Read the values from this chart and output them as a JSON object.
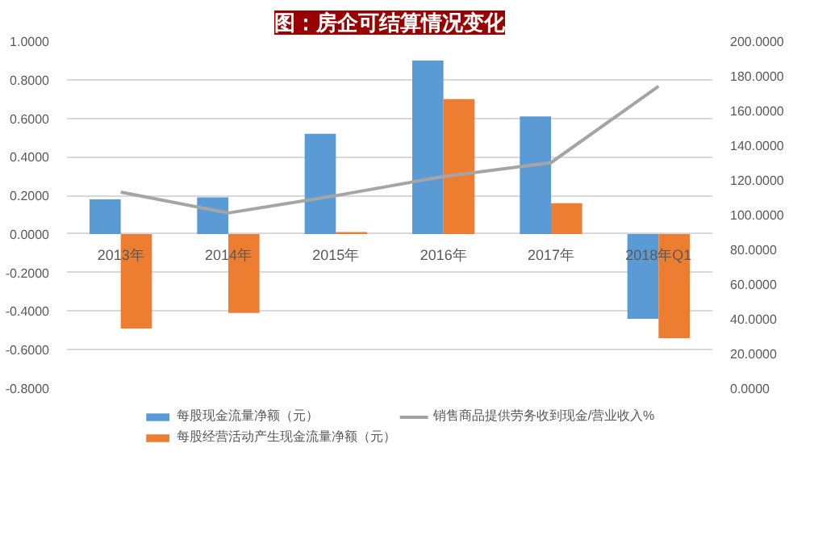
{
  "chart_data": {
    "type": "bar",
    "title": "图：房企可结算情况变化",
    "categories": [
      "2013年",
      "2014年",
      "2015年",
      "2016年",
      "2017年",
      "2018年Q1"
    ],
    "series": [
      {
        "name": "每股现金流量净额（元）",
        "color": "#5b9bd5",
        "values": [
          0.18,
          0.19,
          0.52,
          0.9,
          0.61,
          -0.44
        ]
      },
      {
        "name": "每股经营活动产生现金流量净额（元）",
        "color": "#ed7d31",
        "values": [
          -0.49,
          -0.41,
          0.01,
          0.7,
          0.16,
          -0.54
        ]
      },
      {
        "name": "销售商品提供劳务收到现金/营业收入%",
        "color": "#a5a5a5",
        "type": "line",
        "axis": "y2",
        "values": [
          113,
          101,
          111,
          122,
          130,
          174
        ]
      }
    ],
    "ylim": [
      -0.8,
      1.0
    ],
    "yticks": [
      {
        "value": -0.8,
        "label": "-0.8000"
      },
      {
        "value": -0.6,
        "label": "-0.6000"
      },
      {
        "value": -0.4,
        "label": "-0.4000"
      },
      {
        "value": -0.2,
        "label": "-0.2000"
      },
      {
        "value": 0,
        "label": "0.0000"
      },
      {
        "value": 0.2,
        "label": "0.2000"
      },
      {
        "value": 0.4,
        "label": "0.4000"
      },
      {
        "value": 0.6,
        "label": "0.6000"
      },
      {
        "value": 0.8,
        "label": "0.8000"
      },
      {
        "value": 1.0,
        "label": "1.0000"
      }
    ],
    "y2lim": [
      0,
      200
    ],
    "y2ticks": [
      {
        "value": 0,
        "label": "0.0000"
      },
      {
        "value": 20,
        "label": "20.0000"
      },
      {
        "value": 40,
        "label": "40.0000"
      },
      {
        "value": 60,
        "label": "60.0000"
      },
      {
        "value": 80,
        "label": "80.0000"
      },
      {
        "value": 100,
        "label": "100.0000"
      },
      {
        "value": 120,
        "label": "120.0000"
      },
      {
        "value": 140,
        "label": "140.0000"
      },
      {
        "value": 160,
        "label": "160.0000"
      },
      {
        "value": 180,
        "label": "180.0000"
      },
      {
        "value": 200,
        "label": "200.0000"
      }
    ],
    "grid": "y",
    "legend": "bottom"
  }
}
